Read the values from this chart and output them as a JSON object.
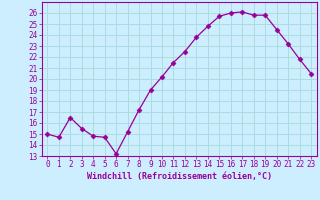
{
  "x": [
    0,
    1,
    2,
    3,
    4,
    5,
    6,
    7,
    8,
    9,
    10,
    11,
    12,
    13,
    14,
    15,
    16,
    17,
    18,
    19,
    20,
    21,
    22,
    23
  ],
  "y": [
    15.0,
    14.7,
    16.5,
    15.5,
    14.8,
    14.7,
    13.2,
    15.2,
    17.2,
    19.0,
    20.2,
    21.5,
    22.5,
    23.8,
    24.8,
    25.7,
    26.0,
    26.1,
    25.8,
    25.8,
    24.5,
    23.2,
    21.8,
    20.5
  ],
  "line_color": "#990099",
  "marker": "D",
  "marker_size": 2.5,
  "bg_color": "#cceeff",
  "grid_color": "#aadddd",
  "xlabel": "Windchill (Refroidissement éolien,°C)",
  "xlabel_color": "#990099",
  "tick_color": "#990099",
  "ylim": [
    13,
    27
  ],
  "xlim": [
    -0.5,
    23.5
  ],
  "yticks": [
    13,
    14,
    15,
    16,
    17,
    18,
    19,
    20,
    21,
    22,
    23,
    24,
    25,
    26
  ],
  "xticks": [
    0,
    1,
    2,
    3,
    4,
    5,
    6,
    7,
    8,
    9,
    10,
    11,
    12,
    13,
    14,
    15,
    16,
    17,
    18,
    19,
    20,
    21,
    22,
    23
  ],
  "xtick_labels": [
    "0",
    "1",
    "2",
    "3",
    "4",
    "5",
    "6",
    "7",
    "8",
    "9",
    "10",
    "11",
    "12",
    "13",
    "14",
    "15",
    "16",
    "17",
    "18",
    "19",
    "20",
    "21",
    "22",
    "23"
  ]
}
